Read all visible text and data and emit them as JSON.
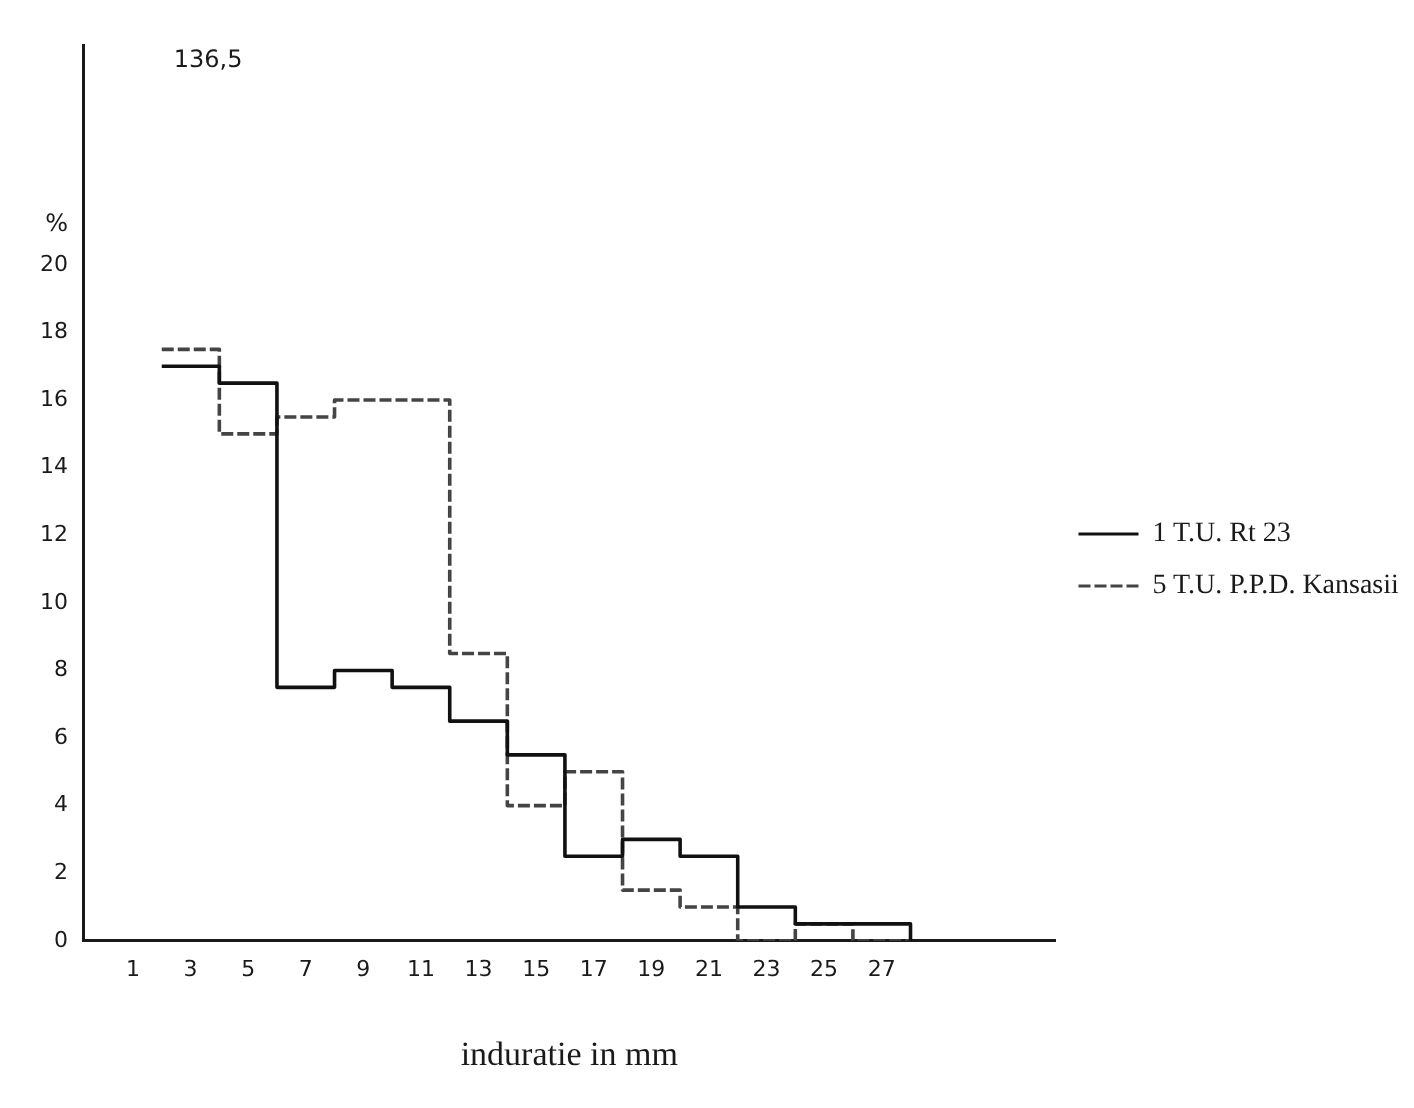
{
  "chart_data": {
    "type": "histogram",
    "ylabel": "%",
    "xlabel": "induratie in mm",
    "annotations": [
      "136,5"
    ],
    "bins": [
      2,
      4,
      6,
      8,
      10,
      12,
      14,
      16,
      18,
      20,
      22,
      24,
      26,
      28
    ],
    "series": [
      {
        "name": "1 T.U. Rt 23",
        "color": "#111111",
        "line_style": "solid",
        "values": [
          17,
          16.5,
          7.5,
          8,
          7.5,
          6.5,
          5.5,
          2.5,
          3,
          2.5,
          1,
          0.5,
          0.5
        ]
      },
      {
        "name": "5 T.U. P.P.D. Kansasii",
        "color": "#444444",
        "line_style": "dashed",
        "values": [
          17.5,
          15,
          15.5,
          16,
          16,
          8.5,
          4,
          5,
          1.5,
          1,
          0,
          0.5,
          0
        ]
      }
    ],
    "xlim": [
      -0.7,
      33
    ],
    "xticks": [
      1,
      3,
      5,
      7,
      9,
      11,
      13,
      15,
      17,
      19,
      21,
      23,
      25,
      27
    ],
    "ylim": [
      0,
      26.5
    ],
    "yticks": [
      0,
      2,
      4,
      6,
      8,
      10,
      12,
      14,
      16,
      18,
      20
    ],
    "grid": false,
    "legend": "right"
  }
}
